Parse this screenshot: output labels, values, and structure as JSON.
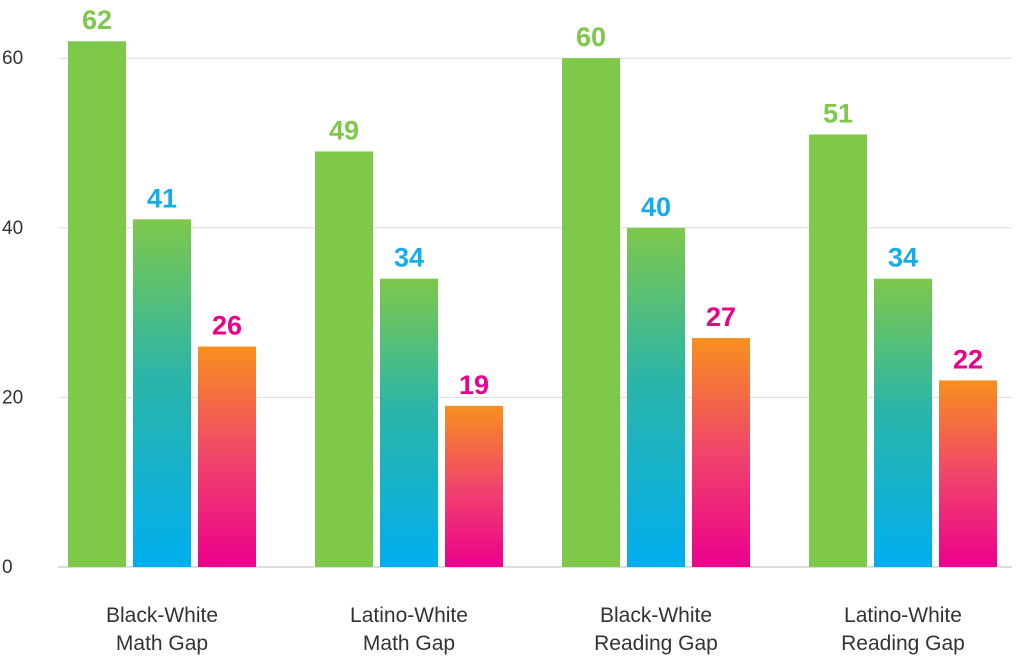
{
  "chart_data": {
    "type": "bar",
    "categories": [
      [
        "Black-White",
        "Math Gap"
      ],
      [
        "Latino-White",
        "Math Gap"
      ],
      [
        "Black-White",
        "Reading Gap"
      ],
      [
        "Latino-White",
        "Reading Gap"
      ]
    ],
    "series": [
      {
        "values": [
          62,
          49,
          60,
          51
        ],
        "color": "#7ec84a",
        "label_color": "#7ec84a"
      },
      {
        "values": [
          41,
          34,
          40,
          34
        ],
        "color": "#00aeef",
        "label_color": "#13aee9"
      },
      {
        "values": [
          26,
          19,
          27,
          22
        ],
        "color": "#ec008c",
        "label_color": "#ec008c"
      }
    ],
    "gradient_colors": {
      "green": "#7ec84a",
      "teal": "#2bb5a8",
      "blue": "#00aeef",
      "orange": "#f7901e",
      "pink": "#ec008c"
    },
    "ylim": [
      0,
      65
    ],
    "yticks": [
      0,
      20,
      40,
      60
    ],
    "grid": true,
    "legend": "none"
  }
}
